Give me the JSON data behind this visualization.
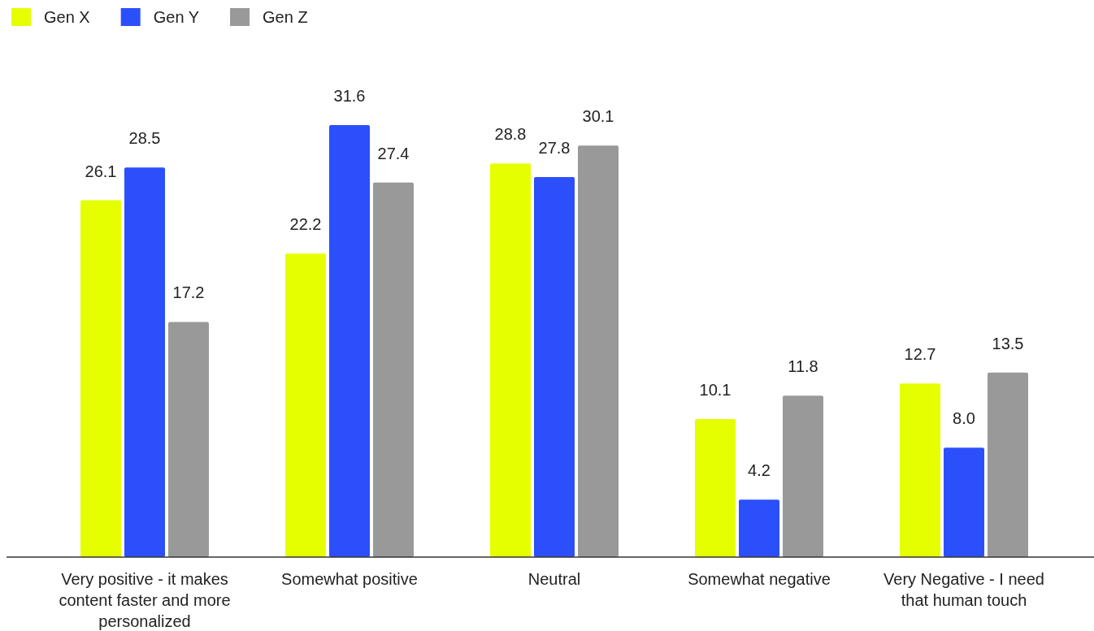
{
  "chart_data": {
    "type": "bar",
    "categories": [
      "Very positive - it makes content faster and more personalized",
      "Somewhat positive",
      "Neutral",
      "Somewhat negative",
      "Very Negative - I need that human touch"
    ],
    "series": [
      {
        "name": "Gen X",
        "color": "#e5ff00",
        "values": [
          26.1,
          22.2,
          28.8,
          10.1,
          12.7
        ],
        "value_labels": [
          "26.1",
          "22.2",
          "28.8",
          "10.1",
          "12.7"
        ]
      },
      {
        "name": "Gen Y",
        "color": "#2c4ffc",
        "values": [
          28.5,
          31.6,
          27.8,
          4.2,
          8.0
        ],
        "value_labels": [
          "28.5",
          "31.6",
          "27.8",
          "4.2",
          "8.0"
        ]
      },
      {
        "name": "Gen Z",
        "color": "#999999",
        "values": [
          17.2,
          27.4,
          30.1,
          11.8,
          13.5
        ],
        "value_labels": [
          "17.2",
          "27.4",
          "30.1",
          "11.8",
          "13.5"
        ]
      }
    ],
    "legend": "top left"
  }
}
